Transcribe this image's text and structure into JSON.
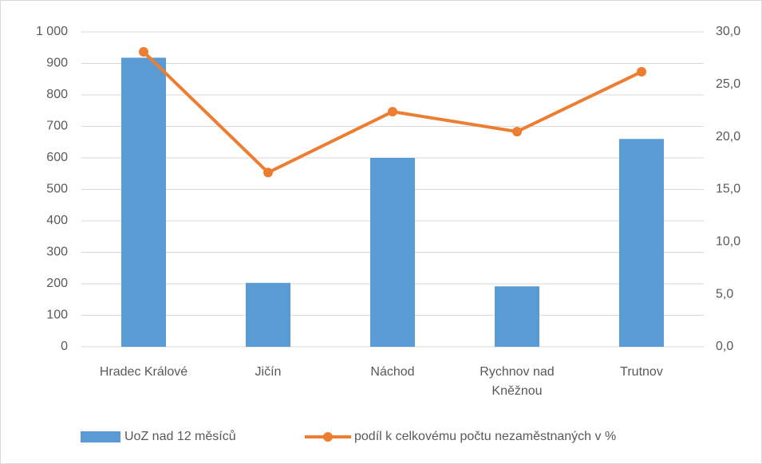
{
  "chart_data": {
    "type": "bar-line",
    "categories": [
      "Hradec Králové",
      "Jičín",
      "Náchod",
      "Rychnov nad Kněžnou",
      "Trutnov"
    ],
    "series": [
      {
        "name": "UoZ nad 12 měsíců",
        "type": "bar",
        "color": "#5b9bd5",
        "values": [
          918,
          203,
          600,
          192,
          660
        ]
      },
      {
        "name": "podíl k celkovému počtu nezaměstnaných v %",
        "type": "line",
        "axis": "y2",
        "color": "#ed7d31",
        "values": [
          28.1,
          16.6,
          22.4,
          20.5,
          26.2
        ]
      }
    ],
    "ylim": [
      0,
      1000
    ],
    "yticks": [
      0,
      100,
      200,
      300,
      400,
      500,
      600,
      700,
      800,
      900,
      {
        "value": 1000,
        "label": "1 000"
      }
    ],
    "y2lim": [
      0,
      30
    ],
    "y2ticks": [
      {
        "value": 0,
        "label": "0,0"
      },
      {
        "value": 5,
        "label": "5,0"
      },
      {
        "value": 10,
        "label": "10,0"
      },
      {
        "value": 15,
        "label": "15,0"
      },
      {
        "value": 20,
        "label": "20,0"
      },
      {
        "value": 25,
        "label": "25,0"
      },
      {
        "value": 30,
        "label": "30,0"
      }
    ],
    "grid": true,
    "legend": "bottom"
  }
}
